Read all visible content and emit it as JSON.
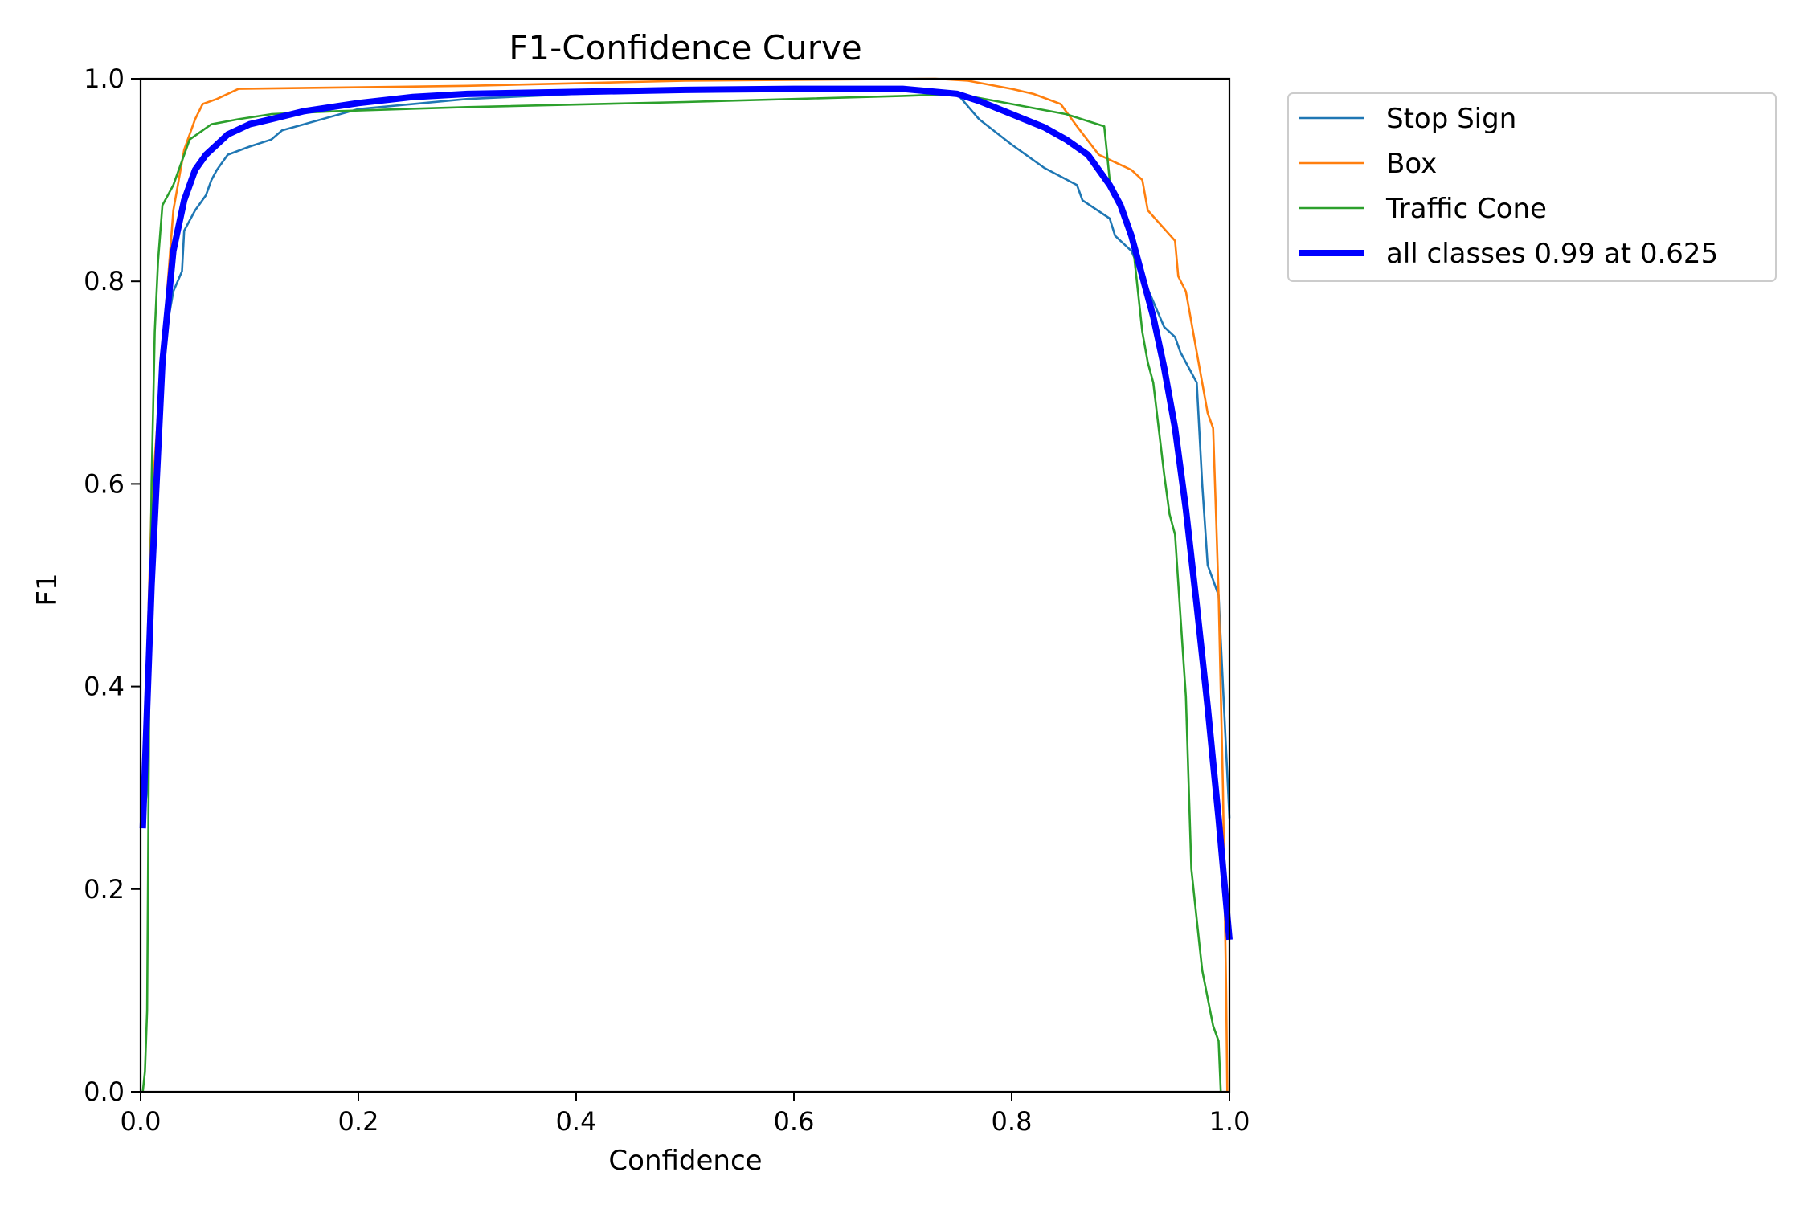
{
  "chart_data": {
    "type": "line",
    "title": "F1-Confidence Curve",
    "xlabel": "Confidence",
    "ylabel": "F1",
    "xlim": [
      0,
      1
    ],
    "ylim": [
      0,
      1
    ],
    "xticks": [
      "0.0",
      "0.2",
      "0.4",
      "0.6",
      "0.8",
      "1.0"
    ],
    "yticks": [
      "0.0",
      "0.2",
      "0.4",
      "0.6",
      "0.8",
      "1.0"
    ],
    "grid": false,
    "legend_position": "outside-top-right",
    "series": [
      {
        "name": "Stop Sign",
        "color": "#1f77b4",
        "width": "thin",
        "x": [
          0.003,
          0.006,
          0.01,
          0.02,
          0.03,
          0.038,
          0.04,
          0.045,
          0.05,
          0.06,
          0.065,
          0.07,
          0.08,
          0.1,
          0.12,
          0.13,
          0.15,
          0.2,
          0.3,
          0.5,
          0.7,
          0.75,
          0.77,
          0.8,
          0.83,
          0.86,
          0.865,
          0.89,
          0.895,
          0.91,
          0.93,
          0.94,
          0.95,
          0.955,
          0.97,
          0.975,
          0.98,
          0.99,
          0.995,
          1.0
        ],
        "y": [
          0.27,
          0.3,
          0.5,
          0.73,
          0.79,
          0.81,
          0.85,
          0.86,
          0.87,
          0.885,
          0.9,
          0.91,
          0.925,
          0.933,
          0.94,
          0.949,
          0.955,
          0.97,
          0.98,
          0.99,
          0.99,
          0.985,
          0.96,
          0.935,
          0.912,
          0.895,
          0.88,
          0.862,
          0.845,
          0.83,
          0.78,
          0.755,
          0.745,
          0.73,
          0.7,
          0.6,
          0.52,
          0.49,
          0.38,
          0.27
        ]
      },
      {
        "name": "Box",
        "color": "#ff7f0e",
        "width": "thin",
        "x": [
          0.003,
          0.01,
          0.02,
          0.03,
          0.04,
          0.05,
          0.057,
          0.07,
          0.09,
          0.3,
          0.5,
          0.73,
          0.76,
          0.8,
          0.82,
          0.845,
          0.86,
          0.88,
          0.9,
          0.91,
          0.92,
          0.925,
          0.95,
          0.953,
          0.96,
          0.97,
          0.98,
          0.985,
          0.988,
          0.99,
          0.994,
          0.997,
          0.998
        ],
        "y": [
          0.32,
          0.58,
          0.73,
          0.87,
          0.93,
          0.96,
          0.975,
          0.98,
          0.99,
          0.993,
          0.998,
          1.0,
          0.998,
          0.99,
          0.985,
          0.975,
          0.953,
          0.925,
          0.915,
          0.91,
          0.9,
          0.87,
          0.84,
          0.805,
          0.79,
          0.73,
          0.67,
          0.655,
          0.56,
          0.49,
          0.3,
          0.1,
          0.0
        ]
      },
      {
        "name": "Traffic Cone",
        "color": "#2ca02c",
        "width": "thin",
        "x": [
          0.002,
          0.004,
          0.006,
          0.008,
          0.01,
          0.013,
          0.016,
          0.02,
          0.03,
          0.045,
          0.065,
          0.09,
          0.12,
          0.18,
          0.3,
          0.5,
          0.7,
          0.75,
          0.8,
          0.85,
          0.885,
          0.89,
          0.9,
          0.91,
          0.92,
          0.925,
          0.93,
          0.94,
          0.945,
          0.95,
          0.955,
          0.96,
          0.965,
          0.97,
          0.975,
          0.985,
          0.99,
          0.992
        ],
        "y": [
          0.0,
          0.02,
          0.08,
          0.4,
          0.6,
          0.75,
          0.82,
          0.875,
          0.895,
          0.94,
          0.955,
          0.96,
          0.965,
          0.968,
          0.972,
          0.977,
          0.983,
          0.985,
          0.975,
          0.965,
          0.953,
          0.9,
          0.87,
          0.85,
          0.75,
          0.72,
          0.7,
          0.61,
          0.57,
          0.55,
          0.47,
          0.39,
          0.22,
          0.17,
          0.12,
          0.065,
          0.05,
          0.0
        ]
      },
      {
        "name": "all classes 0.99 at 0.625",
        "color": "#0000ff",
        "width": "thick",
        "x": [
          0.002,
          0.01,
          0.02,
          0.03,
          0.04,
          0.05,
          0.06,
          0.07,
          0.08,
          0.1,
          0.12,
          0.15,
          0.2,
          0.25,
          0.3,
          0.4,
          0.5,
          0.6,
          0.625,
          0.7,
          0.75,
          0.77,
          0.8,
          0.83,
          0.85,
          0.87,
          0.89,
          0.9,
          0.91,
          0.92,
          0.93,
          0.94,
          0.95,
          0.96,
          0.97,
          0.98,
          0.99,
          1.0
        ],
        "y": [
          0.26,
          0.5,
          0.72,
          0.83,
          0.88,
          0.91,
          0.925,
          0.935,
          0.945,
          0.955,
          0.96,
          0.968,
          0.976,
          0.982,
          0.985,
          0.987,
          0.989,
          0.99,
          0.99,
          0.99,
          0.985,
          0.978,
          0.965,
          0.952,
          0.94,
          0.925,
          0.895,
          0.875,
          0.845,
          0.805,
          0.765,
          0.715,
          0.655,
          0.575,
          0.48,
          0.38,
          0.27,
          0.15
        ]
      }
    ]
  }
}
